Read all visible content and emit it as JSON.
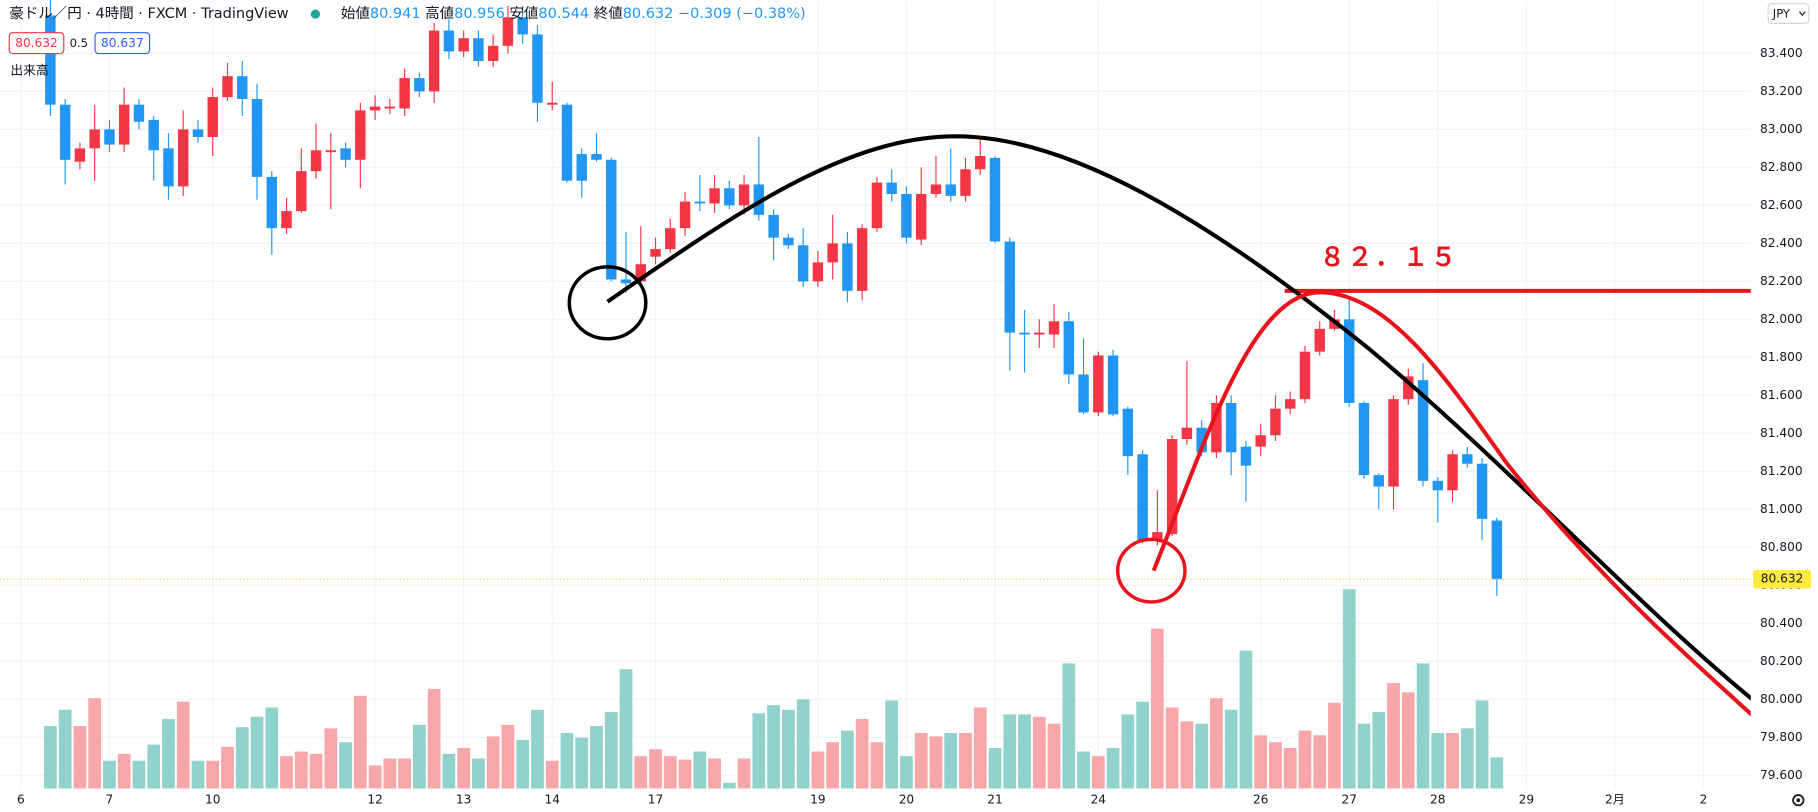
{
  "chart_data": {
    "type": "candlestick",
    "title": "豪ドル／円 · 4時間 · FXCM · TradingView",
    "ohlc_legend": [
      [
        "始値",
        "80.941"
      ],
      [
        "高値",
        "80.956"
      ],
      [
        "安値",
        "80.544"
      ],
      [
        "終値",
        "80.632"
      ]
    ],
    "change": "−0.309 (−0.38%)",
    "spread": "0.5",
    "ask": "80.637",
    "volume_label": "出来高",
    "currency": "JPY",
    "annotation": "８２．１５",
    "hline": 82.15,
    "up_color": "#f23645",
    "down_color": "#2196f3",
    "volume_up_color": "#f7a7aa",
    "volume_down_color": "#92d2cc",
    "grid": true,
    "ylim": [
      79.53,
      83.68
    ],
    "yticks": [
      {
        "value": 79.6,
        "label": "79.600"
      },
      {
        "value": 79.8,
        "label": "79.800"
      },
      {
        "value": 80.0,
        "label": "80.000"
      },
      {
        "value": 80.2,
        "label": "80.200"
      },
      {
        "value": 80.4,
        "label": "80.400"
      },
      {
        "value": 80.6,
        "label": "80.600"
      },
      {
        "value": 80.8,
        "label": "80.800"
      },
      {
        "value": 81.0,
        "label": "81.000"
      },
      {
        "value": 81.2,
        "label": "81.200"
      },
      {
        "value": 81.4,
        "label": "81.400"
      },
      {
        "value": 81.6,
        "label": "81.600"
      },
      {
        "value": 81.8,
        "label": "81.800"
      },
      {
        "value": 82.0,
        "label": "82.000"
      },
      {
        "value": 82.2,
        "label": "82.200"
      },
      {
        "value": 82.4,
        "label": "82.400"
      },
      {
        "value": 82.6,
        "label": "82.600"
      },
      {
        "value": 82.8,
        "label": "82.800"
      },
      {
        "value": 83.0,
        "label": "83.000"
      },
      {
        "value": 83.2,
        "label": "83.200"
      },
      {
        "value": 83.4,
        "label": "83.400"
      }
    ],
    "categories": [
      "6",
      null,
      null,
      null,
      null,
      null,
      "7",
      null,
      null,
      null,
      null,
      null,
      null,
      "10",
      null,
      null,
      null,
      null,
      null,
      null,
      null,
      null,
      null,
      null,
      "12",
      null,
      null,
      null,
      null,
      null,
      "13",
      null,
      null,
      null,
      null,
      null,
      "14",
      null,
      null,
      null,
      null,
      null,
      null,
      "17",
      null,
      null,
      null,
      null,
      null,
      null,
      null,
      null,
      null,
      null,
      "19",
      null,
      null,
      null,
      null,
      null,
      "20",
      null,
      null,
      null,
      null,
      null,
      "21",
      null,
      null,
      null,
      null,
      null,
      null,
      "24",
      null,
      null,
      null,
      null,
      null,
      null,
      null,
      null,
      null,
      null,
      "26",
      null,
      null,
      null,
      null,
      null,
      "27",
      null,
      null,
      null,
      null,
      null,
      "28",
      null,
      null,
      null,
      null,
      null,
      "29",
      null,
      null,
      null,
      null,
      null,
      "2月",
      null,
      null,
      null,
      null,
      null,
      "2"
    ],
    "open": [
      null,
      null,
      83.6,
      83.13,
      82.83,
      82.9,
      83.0,
      82.92,
      83.13,
      83.05,
      82.9,
      82.7,
      83.0,
      82.96,
      83.17,
      83.28,
      83.16,
      82.75,
      82.48,
      82.57,
      82.78,
      82.88,
      82.9,
      82.84,
      83.1,
      83.11,
      83.11,
      83.27,
      83.2,
      83.52,
      83.41,
      83.48,
      83.36,
      83.44,
      83.59,
      83.5,
      83.13,
      83.13,
      82.87,
      82.87,
      82.84,
      82.21,
      82.2,
      82.33,
      82.37,
      82.48,
      82.62,
      82.61,
      82.69,
      82.6,
      82.71,
      82.55,
      82.43,
      82.39,
      82.2,
      82.3,
      82.4,
      82.15,
      82.48,
      82.72,
      82.66,
      82.42,
      82.66,
      82.71,
      82.65,
      82.79,
      82.85,
      82.41,
      81.93,
      81.92,
      81.92,
      81.99,
      81.71,
      81.51,
      81.81,
      81.53,
      81.29,
      80.84,
      80.87,
      81.37,
      81.43,
      81.3,
      81.56,
      81.33,
      81.33,
      81.39,
      81.53,
      81.58,
      81.83,
      81.95,
      82.0,
      81.56,
      81.18,
      81.12,
      81.58,
      81.68,
      81.15,
      81.1,
      81.29,
      81.24,
      80.941,
      null,
      null,
      null,
      null,
      null,
      null,
      null,
      null,
      null,
      null,
      null,
      null,
      null,
      null
    ],
    "high": [
      null,
      null,
      83.72,
      83.16,
      82.93,
      83.13,
      83.05,
      83.22,
      83.16,
      83.07,
      82.98,
      83.1,
      83.05,
      83.22,
      83.35,
      83.36,
      83.24,
      82.78,
      82.64,
      82.9,
      83.03,
      82.98,
      82.93,
      83.14,
      83.18,
      83.16,
      83.32,
      83.3,
      83.56,
      83.58,
      83.52,
      83.52,
      83.5,
      83.65,
      83.65,
      83.55,
      83.25,
      83.14,
      82.9,
      82.98,
      82.85,
      82.46,
      82.49,
      82.43,
      82.53,
      82.67,
      82.76,
      82.76,
      82.73,
      82.76,
      82.96,
      82.58,
      82.45,
      82.48,
      82.36,
      82.55,
      82.46,
      82.5,
      82.75,
      82.79,
      82.7,
      82.8,
      82.86,
      82.9,
      82.85,
      82.96,
      82.86,
      82.43,
      82.05,
      82.0,
      82.08,
      82.04,
      81.9,
      81.83,
      81.84,
      81.54,
      81.31,
      81.1,
      81.39,
      81.78,
      81.47,
      81.6,
      81.6,
      81.36,
      81.45,
      81.6,
      81.62,
      81.86,
      81.99,
      82.05,
      82.12,
      81.57,
      81.19,
      81.6,
      81.74,
      81.77,
      81.17,
      81.31,
      81.33,
      81.27,
      80.956,
      null,
      null,
      null,
      null,
      null,
      null,
      null,
      null,
      null,
      null,
      null,
      null,
      null,
      null
    ],
    "low": [
      null,
      null,
      83.07,
      82.71,
      82.79,
      82.73,
      82.88,
      82.88,
      83.0,
      82.73,
      82.63,
      82.65,
      82.93,
      82.86,
      83.15,
      83.07,
      82.63,
      82.34,
      82.45,
      82.56,
      82.74,
      82.58,
      82.8,
      82.69,
      83.05,
      83.08,
      83.07,
      83.17,
      83.14,
      83.37,
      83.38,
      83.33,
      83.33,
      83.4,
      83.45,
      83.04,
      83.1,
      82.72,
      82.64,
      82.83,
      82.2,
      82.14,
      82.18,
      82.29,
      82.35,
      82.44,
      82.57,
      82.56,
      82.58,
      82.55,
      82.52,
      82.31,
      82.37,
      82.17,
      82.17,
      82.21,
      82.09,
      82.1,
      82.46,
      82.62,
      82.4,
      82.39,
      82.64,
      82.62,
      82.62,
      82.76,
      82.4,
      81.73,
      81.72,
      81.85,
      81.85,
      81.66,
      81.5,
      81.49,
      81.49,
      81.18,
      80.82,
      80.81,
      80.86,
      81.34,
      81.28,
      81.27,
      81.18,
      81.04,
      81.28,
      81.36,
      81.5,
      81.56,
      81.81,
      81.94,
      81.54,
      81.16,
      81.0,
      81.0,
      81.55,
      81.12,
      80.93,
      81.04,
      81.22,
      80.84,
      80.544,
      null,
      null,
      null,
      null,
      null,
      null,
      null,
      null,
      null,
      null,
      null,
      null,
      null,
      null
    ],
    "close": [
      null,
      null,
      83.13,
      82.84,
      82.9,
      83.0,
      82.92,
      83.13,
      83.04,
      82.89,
      82.7,
      83.0,
      82.96,
      83.17,
      83.28,
      83.16,
      82.75,
      82.48,
      82.57,
      82.78,
      82.89,
      82.89,
      82.84,
      83.1,
      83.12,
      83.12,
      83.27,
      83.2,
      83.52,
      83.41,
      83.48,
      83.36,
      83.44,
      83.59,
      83.5,
      83.14,
      83.14,
      82.73,
      82.73,
      82.84,
      82.21,
      82.19,
      82.29,
      82.37,
      82.48,
      82.62,
      82.61,
      82.69,
      82.6,
      82.71,
      82.55,
      82.43,
      82.39,
      82.2,
      82.3,
      82.4,
      82.15,
      82.48,
      82.72,
      82.66,
      82.43,
      82.66,
      82.71,
      82.65,
      82.79,
      82.86,
      82.41,
      81.93,
      81.92,
      81.93,
      81.99,
      81.71,
      81.51,
      81.81,
      81.5,
      81.28,
      80.84,
      80.88,
      81.37,
      81.43,
      81.3,
      81.56,
      81.3,
      81.23,
      81.39,
      81.53,
      81.58,
      81.83,
      81.95,
      82.0,
      81.56,
      81.18,
      81.12,
      81.58,
      81.7,
      81.15,
      81.1,
      81.29,
      81.24,
      80.95,
      80.632,
      null,
      null,
      null,
      null,
      null,
      null,
      null,
      null,
      null,
      null,
      null,
      null,
      null,
      null
    ],
    "volume": [
      null,
      null,
      54,
      68,
      54,
      78,
      24,
      30,
      24,
      38,
      60,
      75,
      24,
      24,
      36,
      53,
      62,
      70,
      28,
      32,
      30,
      52,
      40,
      80,
      20,
      26,
      26,
      55,
      86,
      30,
      35,
      26,
      45,
      55,
      42,
      68,
      24,
      48,
      44,
      54,
      66,
      103,
      28,
      34,
      28,
      25,
      32,
      26,
      5,
      26,
      65,
      72,
      68,
      77,
      32,
      40,
      50,
      60,
      40,
      76,
      28,
      48,
      45,
      48,
      48,
      70,
      35,
      64,
      64,
      62,
      56,
      108,
      32,
      28,
      35,
      64,
      75,
      138,
      70,
      58,
      56,
      78,
      68,
      119,
      46,
      40,
      35,
      50,
      46,
      74,
      172,
      56,
      66,
      91,
      83,
      108,
      48,
      48,
      52,
      76,
      27,
      null,
      null,
      null,
      null,
      null,
      null,
      null,
      null,
      null,
      null,
      null,
      null,
      null,
      null
    ]
  }
}
